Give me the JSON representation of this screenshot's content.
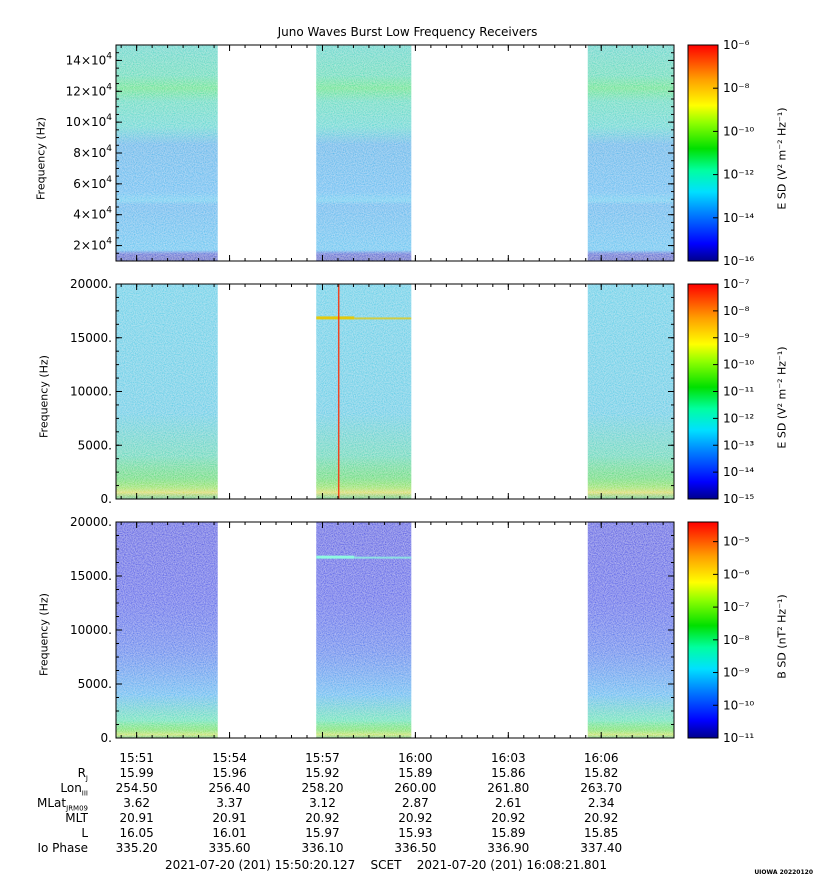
{
  "title": "Juno Waves Burst Low Frequency Receivers",
  "panels": [
    {
      "ylabel": "Frequency (Hz)",
      "ylim": [
        10000,
        150000
      ],
      "yticks": [
        {
          "value": 20000,
          "mant": "2×10",
          "exp": "4"
        },
        {
          "value": 40000,
          "mant": "4×10",
          "exp": "4"
        },
        {
          "value": 60000,
          "mant": "6×10",
          "exp": "4"
        },
        {
          "value": 80000,
          "mant": "8×10",
          "exp": "4"
        },
        {
          "value": 100000,
          "mant": "10×10",
          "exp": "4"
        },
        {
          "value": 120000,
          "mant": "12×10",
          "exp": "4"
        },
        {
          "value": 140000,
          "mant": "14×10",
          "exp": "4"
        }
      ],
      "colorbar_label": "E SD (V² m⁻² Hz⁻¹)",
      "colorbar_ticks": [
        "10⁻⁶",
        "10⁻⁸",
        "10⁻¹⁰",
        "10⁻¹²",
        "10⁻¹⁴",
        "10⁻¹⁶"
      ],
      "colorbar_log_range": [
        -16,
        -6
      ],
      "background": "cyan-green"
    },
    {
      "ylabel": "Frequency (Hz)",
      "ylim": [
        0,
        20000
      ],
      "yticks": [
        {
          "value": 0,
          "label": "0."
        },
        {
          "value": 5000,
          "label": "5000."
        },
        {
          "value": 10000,
          "label": "10000."
        },
        {
          "value": 15000,
          "label": "15000."
        },
        {
          "value": 20000,
          "label": "20000."
        }
      ],
      "colorbar_label": "E SD (V² m⁻² Hz⁻¹)",
      "colorbar_ticks": [
        "10⁻⁷",
        "10⁻⁸",
        "10⁻⁹",
        "10⁻¹⁰",
        "10⁻¹¹",
        "10⁻¹²",
        "10⁻¹³",
        "10⁻¹⁴",
        "10⁻¹⁵"
      ],
      "colorbar_log_range": [
        -15,
        -7
      ],
      "background": "cyan"
    },
    {
      "ylabel": "Frequency (Hz)",
      "ylim": [
        0,
        20000
      ],
      "yticks": [
        {
          "value": 0,
          "label": "0."
        },
        {
          "value": 5000,
          "label": "5000."
        },
        {
          "value": 10000,
          "label": "10000."
        },
        {
          "value": 15000,
          "label": "15000."
        },
        {
          "value": 20000,
          "label": "20000."
        }
      ],
      "colorbar_label": "B SD (nT² Hz⁻¹)",
      "colorbar_ticks": [
        "10⁻⁵",
        "10⁻⁶",
        "10⁻⁷",
        "10⁻⁸",
        "10⁻⁹",
        "10⁻¹⁰",
        "10⁻¹¹"
      ],
      "colorbar_log_range": [
        -11,
        -4.4
      ],
      "background": "blue"
    }
  ],
  "chart_data": {
    "type": "heatmap",
    "title": "Juno Waves Burst Low Frequency Receivers",
    "xlabel": "SCET",
    "x_range_minutes": [
      "15:50:20",
      "16:08:21"
    ],
    "xticks": [
      "15:51",
      "15:54",
      "15:57",
      "16:00",
      "16:03",
      "16:06"
    ],
    "data_intervals": [
      {
        "start": "15:50:20",
        "end": "15:53:37"
      },
      {
        "start": "15:56:48",
        "end": "15:59:52"
      },
      {
        "start": "16:05:34",
        "end": "16:08:21"
      }
    ],
    "features": [
      {
        "panel": 1,
        "type": "narrowband",
        "freq_hz": 16800,
        "interval": 2,
        "color": "#e8c800"
      },
      {
        "panel": 1,
        "type": "vertical_spike",
        "time": "15:57:30",
        "color": "#ff2a00"
      },
      {
        "panel": 2,
        "type": "narrowband",
        "freq_hz": 16700,
        "interval": 2,
        "color": "#8fffe0"
      }
    ]
  },
  "ephemeris": {
    "rows": [
      {
        "label": "R",
        "sub": "J",
        "values": [
          "15.99",
          "15.96",
          "15.92",
          "15.89",
          "15.86",
          "15.82"
        ]
      },
      {
        "label": "Lon",
        "sub": "III",
        "values": [
          "254.50",
          "256.40",
          "258.20",
          "260.00",
          "261.80",
          "263.70"
        ]
      },
      {
        "label": "MLat",
        "sub": "JRM09",
        "values": [
          "3.62",
          "3.37",
          "3.12",
          "2.87",
          "2.61",
          "2.34"
        ]
      },
      {
        "label": "MLT",
        "sub": "",
        "values": [
          "20.91",
          "20.91",
          "20.92",
          "20.92",
          "20.92",
          "20.92"
        ]
      },
      {
        "label": "L",
        "sub": "",
        "values": [
          "16.05",
          "16.01",
          "15.97",
          "15.93",
          "15.89",
          "15.85"
        ]
      },
      {
        "label": "Io Phase",
        "sub": "",
        "values": [
          "335.20",
          "335.60",
          "336.10",
          "336.50",
          "336.90",
          "337.40"
        ]
      }
    ]
  },
  "time_range": {
    "start": "2021-07-20 (201) 15:50:20.127",
    "label": "SCET",
    "end": "2021-07-20 (201) 16:08:21.801"
  },
  "stamp": "UIOWA 20220120"
}
